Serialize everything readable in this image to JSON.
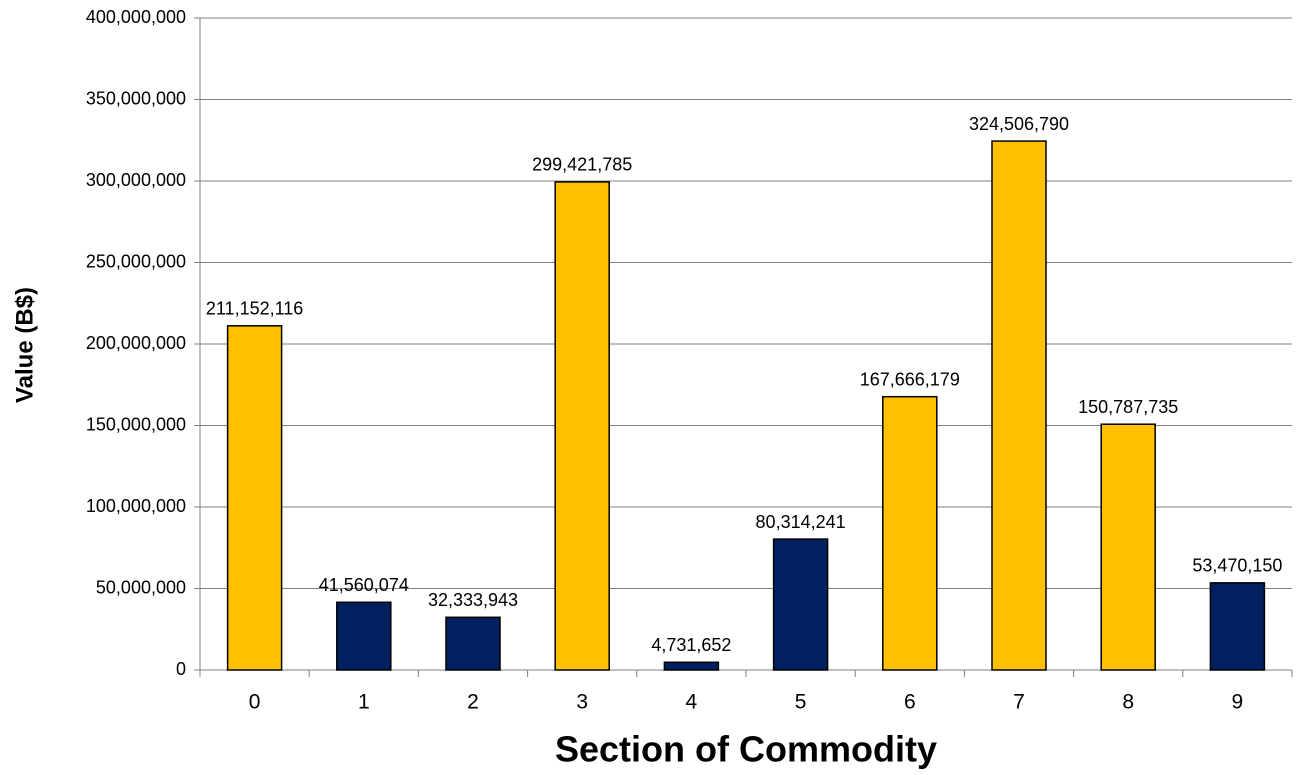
{
  "chart_data": {
    "type": "bar",
    "xlabel": "Section of Commodity",
    "ylabel": "Value (B$)",
    "categories": [
      "0",
      "1",
      "2",
      "3",
      "4",
      "5",
      "6",
      "7",
      "8",
      "9"
    ],
    "values": [
      211152116,
      41560074,
      32333943,
      299421785,
      4731652,
      80314241,
      167666179,
      324506790,
      150787735,
      53470150
    ],
    "value_labels": [
      "211,152,116",
      "41,560,074",
      "32,333,943",
      "299,421,785",
      "4,731,652",
      "80,314,241",
      "167,666,179",
      "324,506,790",
      "150,787,735",
      "53,470,150"
    ],
    "colors": [
      "#FFC000",
      "#002060",
      "#002060",
      "#FFC000",
      "#002060",
      "#002060",
      "#FFC000",
      "#FFC000",
      "#FFC000",
      "#002060"
    ],
    "ylim": [
      0,
      400000000
    ],
    "yticks": [
      0,
      {
        "value": 50000000,
        "label": "50,000,000"
      },
      {
        "value": 100000000,
        "label": "100,000,000"
      },
      {
        "value": 150000000,
        "label": "150,000,000"
      },
      {
        "value": 200000000,
        "label": "200,000,000"
      },
      {
        "value": 250000000,
        "label": "250,000,000"
      },
      {
        "value": 300000000,
        "label": "300,000,000"
      },
      {
        "value": 350000000,
        "label": "350,000,000"
      },
      {
        "value": 400000000,
        "label": "400,000,000"
      }
    ],
    "grid": true
  }
}
